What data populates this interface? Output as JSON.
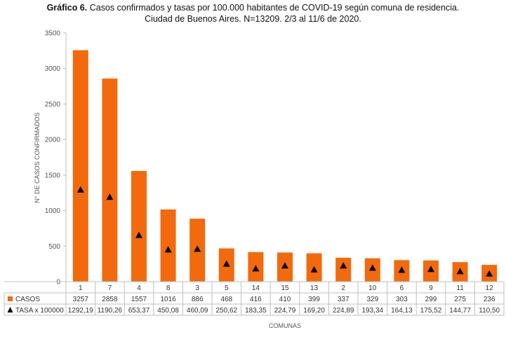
{
  "title": {
    "prefix": "Gráfico 6.",
    "line1": "Casos confirmados y tasas por 100.000 habitantes de COVID-19 según comuna de residencia.",
    "line2": "Ciudad de Buenos Aires. N=13209. 2/3 al 11/6 de 2020."
  },
  "colors": {
    "bar": "#f26a0d",
    "marker": "#000000",
    "grid": "#d9d9d9"
  },
  "chart_data": {
    "type": "bar",
    "xlabel": "COMUNAS",
    "ylabel": "N° DE CASOS CONFIRMADOS",
    "ylim": [
      0,
      3500
    ],
    "yticks": [
      0,
      500,
      1000,
      1500,
      2000,
      2500,
      3000,
      3500
    ],
    "categories": [
      "1",
      "7",
      "4",
      "8",
      "3",
      "5",
      "14",
      "15",
      "13",
      "2",
      "10",
      "6",
      "9",
      "11",
      "12"
    ],
    "series": [
      {
        "name": "CASOS",
        "kind": "bar",
        "values": [
          3257,
          2858,
          1557,
          1016,
          886,
          468,
          416,
          410,
          399,
          337,
          329,
          303,
          299,
          275,
          236
        ],
        "labels": [
          "3257",
          "2858",
          "1557",
          "1016",
          "886",
          "468",
          "416",
          "410",
          "399",
          "337",
          "329",
          "303",
          "299",
          "275",
          "236"
        ]
      },
      {
        "name": "TASA x 100000",
        "kind": "marker-triangle",
        "values": [
          1292.19,
          1190.26,
          653.37,
          450.08,
          460.09,
          250.62,
          183.35,
          224.79,
          169.2,
          224.89,
          193.34,
          164.13,
          175.52,
          144.77,
          110.5
        ],
        "labels": [
          "1292,19",
          "1190,26",
          "653,37",
          "450,08",
          "460,09",
          "250,62",
          "183,35",
          "224,79",
          "169,20",
          "224,89",
          "193,34",
          "164,13",
          "175,52",
          "144,77",
          "110,50"
        ]
      }
    ],
    "grid": false,
    "legend": "data-table below chart"
  }
}
